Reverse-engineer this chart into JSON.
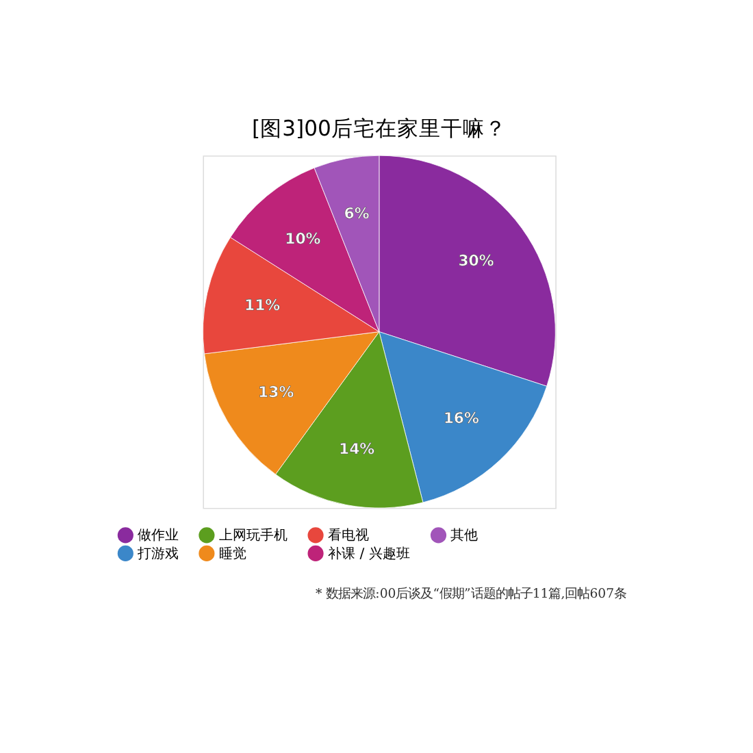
{
  "chart_data": {
    "type": "pie",
    "title": "[图3]00后宅在家里干嘛？",
    "categories": [
      "做作业",
      "打游戏",
      "上网玩手机",
      "睡觉",
      "看电视",
      "补课 / 兴趣班",
      "其他"
    ],
    "values": [
      30,
      16,
      14,
      13,
      11,
      10,
      6
    ],
    "value_labels": [
      "30%",
      "16%",
      "14%",
      "13%",
      "11%",
      "10%",
      "6%"
    ],
    "colors": [
      "#8a2b9e",
      "#3b87c9",
      "#5c9e1f",
      "#ef8a1c",
      "#e8473d",
      "#be2379",
      "#a155b9"
    ],
    "legend": "bottom",
    "annotations": [
      "* 数据来源:00后谈及“假期”话题的帖子11篇,回帖607条"
    ]
  }
}
